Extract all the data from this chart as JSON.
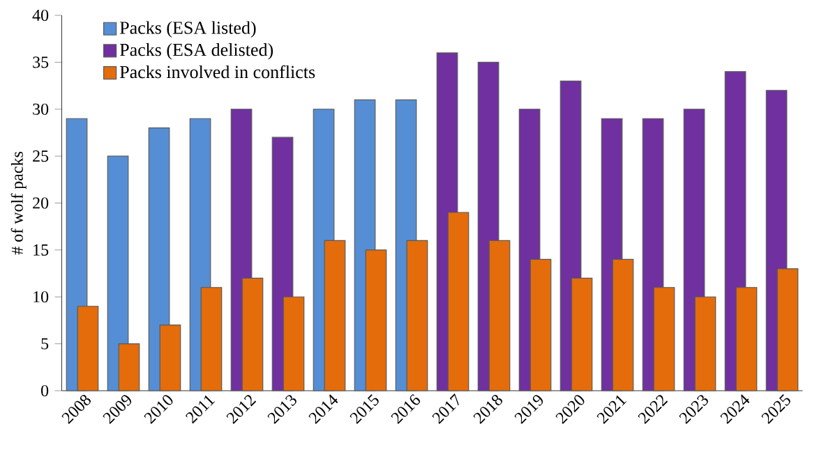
{
  "chart_data": {
    "type": "bar",
    "ylabel": "# of wolf packs",
    "categories": [
      "2008",
      "2009",
      "2010",
      "2011",
      "2012",
      "2013",
      "2014",
      "2015",
      "2016",
      "2017",
      "2018",
      "2019",
      "2020",
      "2021",
      "2022",
      "2023",
      "2024",
      "2025"
    ],
    "series": [
      {
        "name": "Packs (ESA listed)",
        "color": "#558ed5",
        "values": [
          29,
          25,
          28,
          29,
          null,
          null,
          30,
          31,
          31,
          null,
          null,
          null,
          null,
          null,
          null,
          null,
          null,
          null
        ]
      },
      {
        "name": "Packs (ESA delisted)",
        "color": "#7030a0",
        "values": [
          null,
          null,
          null,
          null,
          30,
          27,
          null,
          null,
          null,
          36,
          35,
          30,
          33,
          29,
          29,
          30,
          34,
          32
        ]
      },
      {
        "name": "Packs involved in conflicts",
        "color": "#e46c0a",
        "values": [
          9,
          5,
          7,
          11,
          12,
          10,
          16,
          15,
          16,
          19,
          16,
          14,
          12,
          14,
          11,
          10,
          11,
          13
        ]
      }
    ],
    "ylim": [
      0,
      40
    ],
    "yticks": [
      0,
      5,
      10,
      15,
      20,
      25,
      30,
      35,
      40
    ],
    "legend": "top left"
  }
}
